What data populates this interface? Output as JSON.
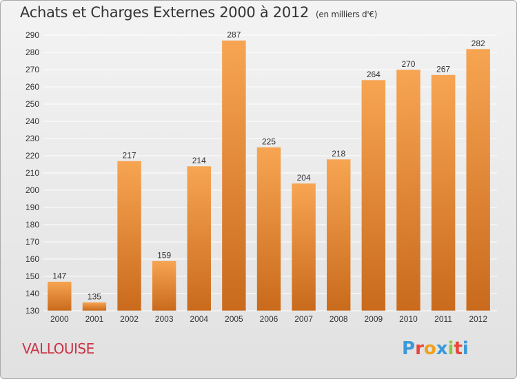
{
  "chart": {
    "title": "Achats et Charges Externes 2000 à 2012",
    "unit_label": "(en milliers d'€)"
  },
  "footer": {
    "city": "VALLOUISE",
    "logo": {
      "letters": [
        "P",
        "r",
        "o",
        "x",
        "i",
        "t",
        "i"
      ],
      "colors": [
        "#3a9ad9",
        "#e8463a",
        "#f0a21c",
        "#3a9ad9",
        "#8cc63f",
        "#e8463a",
        "#3a9ad9"
      ]
    }
  },
  "colors": {
    "bar_top": "#f7a552",
    "bar_bottom": "#c96a1c",
    "grid": "#ffffff",
    "axis_text": "#333333"
  },
  "chart_data": {
    "type": "bar",
    "title": "Achats et Charges Externes 2000 à 2012",
    "categories": [
      "2000",
      "2001",
      "2002",
      "2003",
      "2004",
      "2005",
      "2006",
      "2007",
      "2008",
      "2009",
      "2010",
      "2011",
      "2012"
    ],
    "values": [
      147,
      135,
      217,
      159,
      214,
      287,
      225,
      204,
      218,
      264,
      270,
      267,
      282
    ],
    "ylim": [
      130,
      290
    ],
    "yticks": [
      130,
      140,
      150,
      160,
      170,
      180,
      190,
      200,
      210,
      220,
      230,
      240,
      250,
      260,
      270,
      280,
      290
    ],
    "grid": true,
    "data_labels": true
  }
}
